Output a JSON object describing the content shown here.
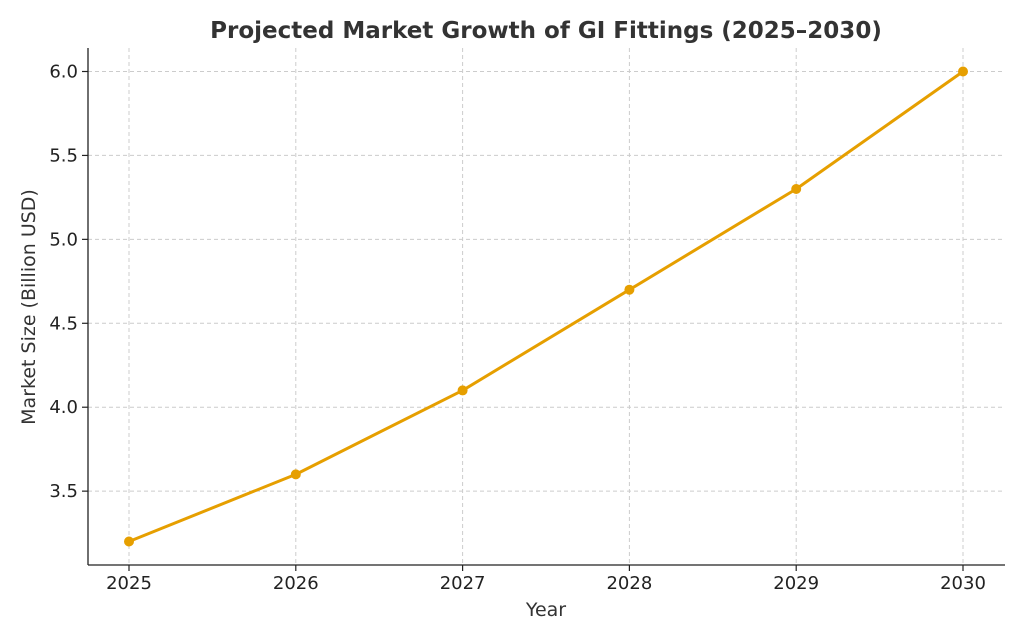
{
  "chart_data": {
    "type": "line",
    "title": "Projected Market Growth of GI Fittings (2025–2030)",
    "xlabel": "Year",
    "ylabel": "Market Size (Billion USD)",
    "categories": [
      "2025",
      "2026",
      "2027",
      "2028",
      "2029",
      "2030"
    ],
    "series": [
      {
        "values": [
          3.2,
          3.6,
          4.1,
          4.7,
          5.3,
          6.0
        ],
        "color": "#E69F00",
        "marker": "circle"
      }
    ],
    "x_ticks": [
      "2025",
      "2026",
      "2027",
      "2028",
      "2029",
      "2030"
    ],
    "y_ticks": [
      "3.5",
      "4.0",
      "4.5",
      "5.0",
      "5.5",
      "6.0"
    ],
    "ylim": [
      3.06,
      6.14
    ],
    "grid": true,
    "legend": "none"
  }
}
